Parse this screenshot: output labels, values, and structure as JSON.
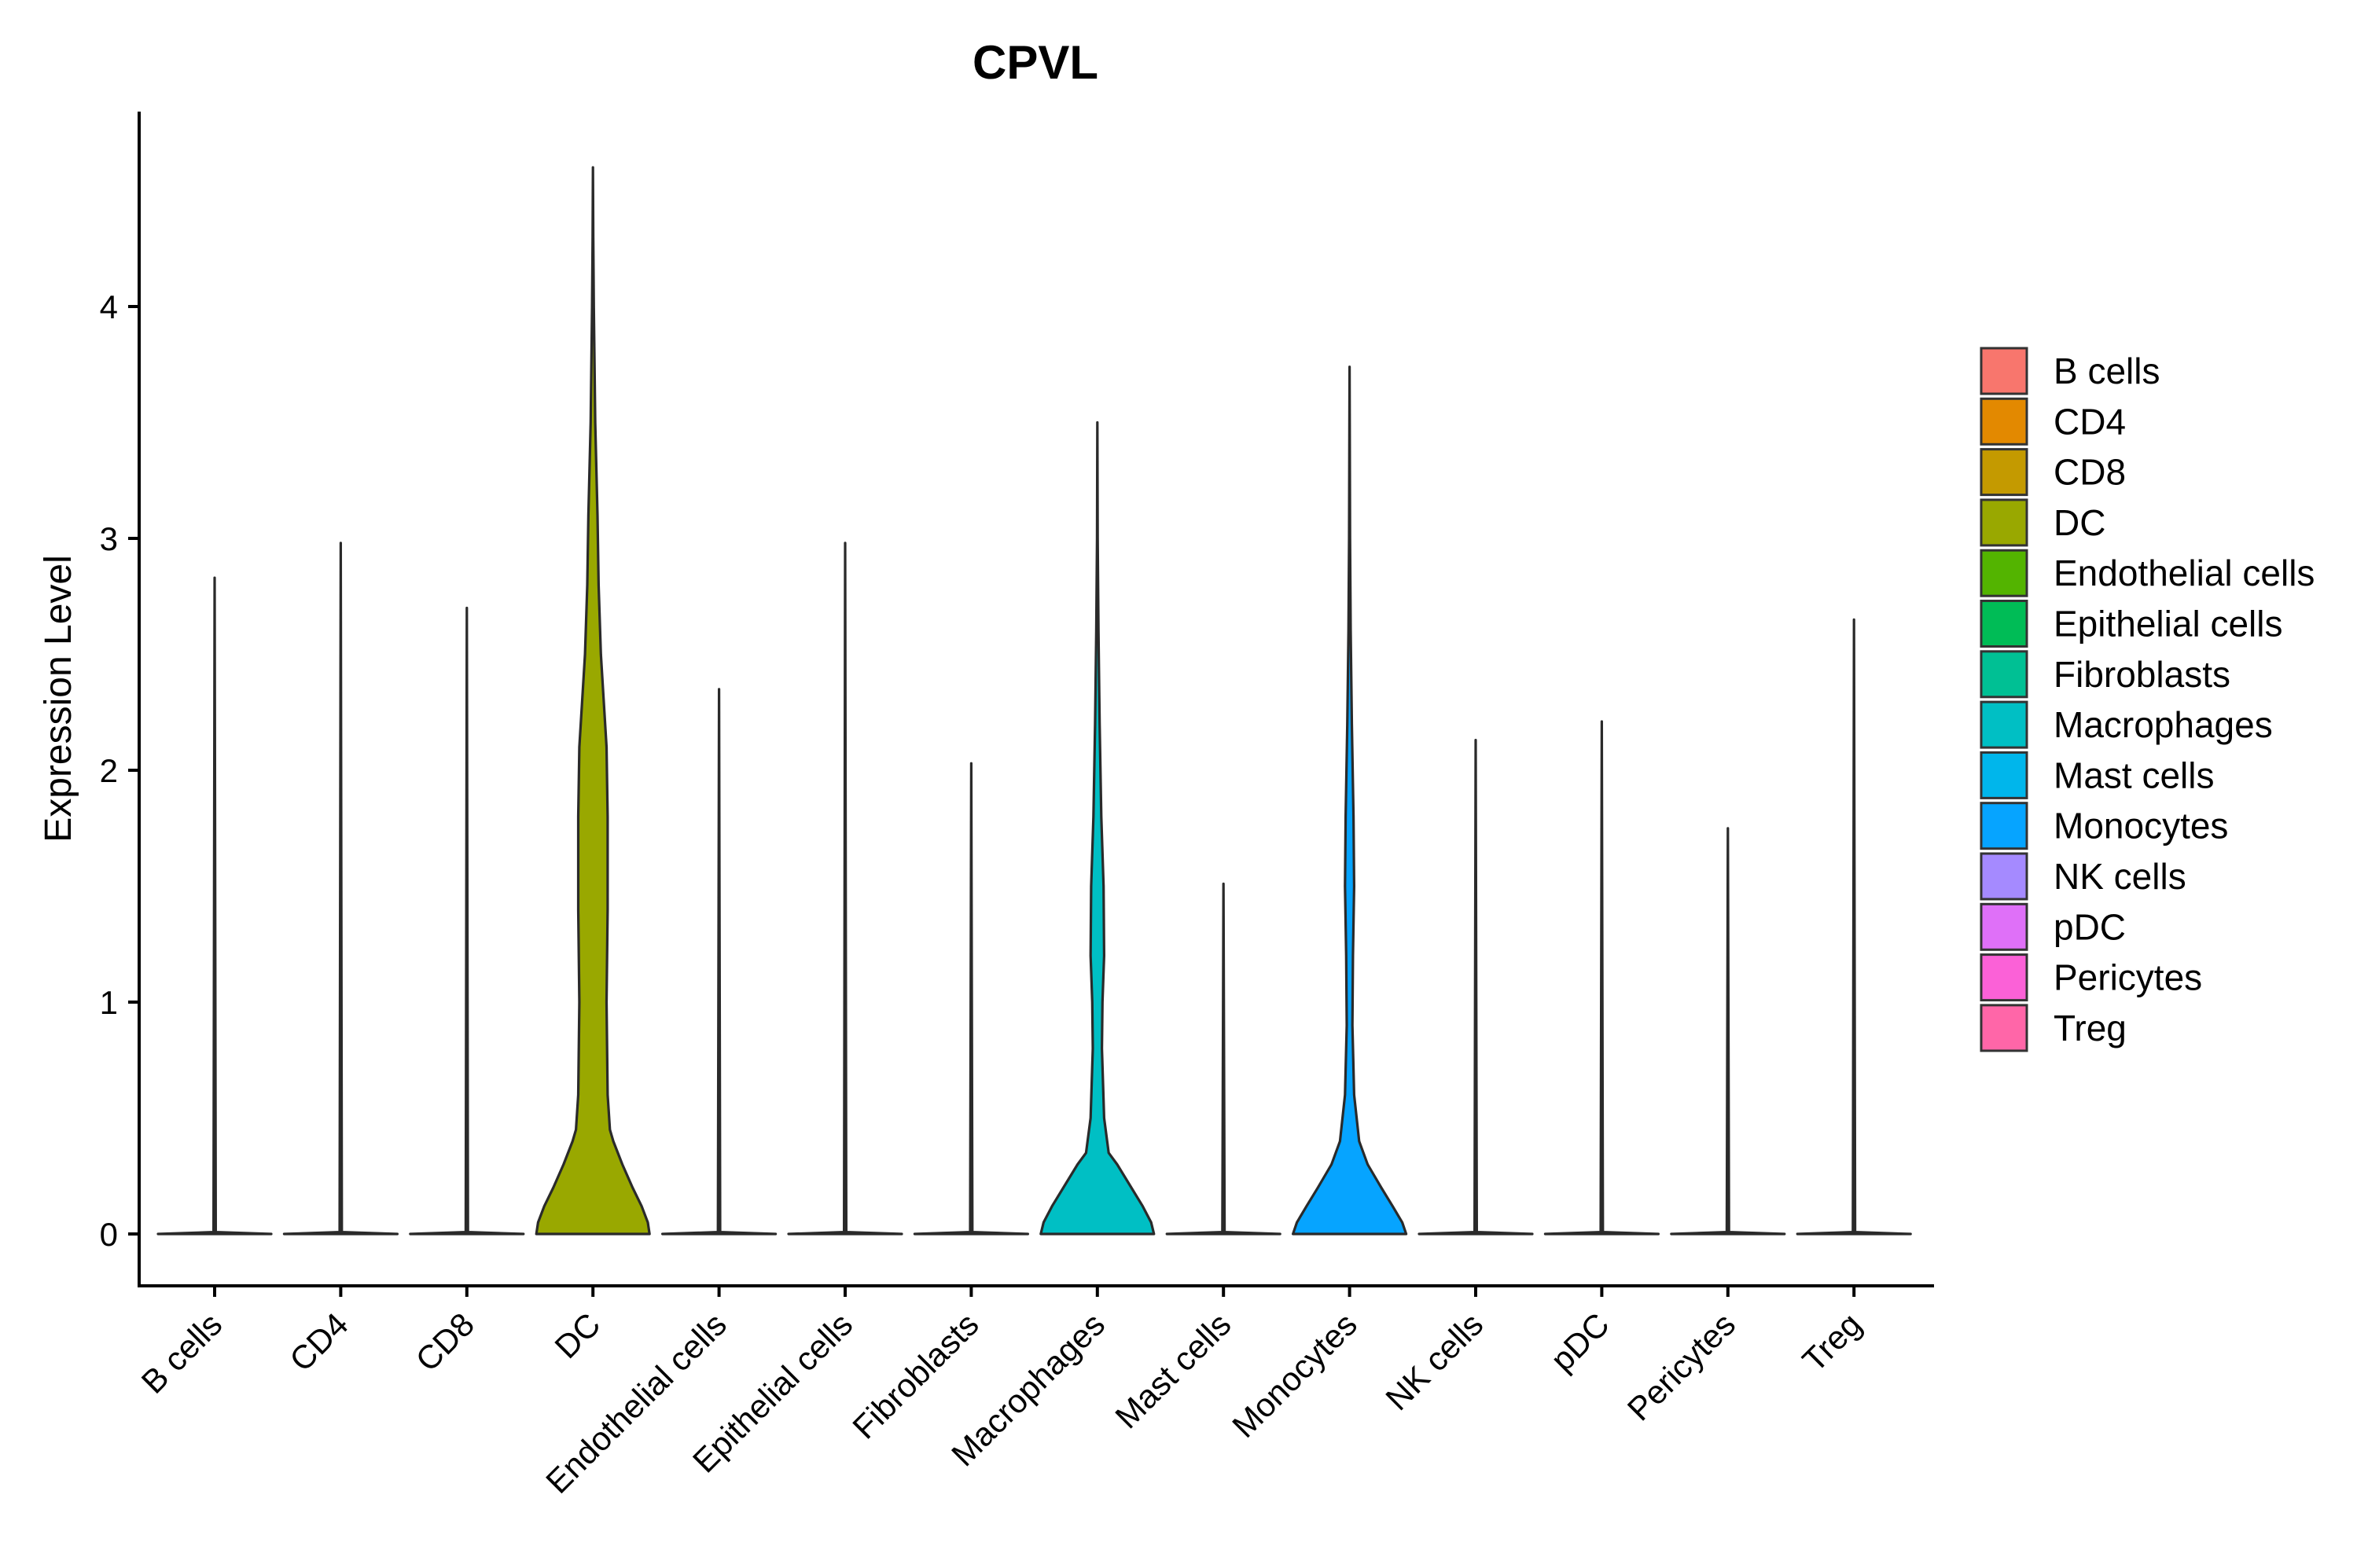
{
  "chart_data": {
    "type": "violin",
    "title": "CPVL",
    "xlabel": "",
    "ylabel": "Expression Level",
    "ylim": [
      -0.23,
      4.8
    ],
    "yticks": [
      0,
      1,
      2,
      3,
      4
    ],
    "grid": false,
    "legend_position": "right",
    "categories": [
      "B cells",
      "CD4",
      "CD8",
      "DC",
      "Endothelial cells",
      "Epithelial cells",
      "Fibroblasts",
      "Macrophages",
      "Mast cells",
      "Monocytes",
      "NK cells",
      "pDC",
      "Pericytes",
      "Treg"
    ],
    "colors": [
      "#F8766D",
      "#E38900",
      "#C49A00",
      "#99A800",
      "#53B400",
      "#00BC56",
      "#00C094",
      "#00BFC4",
      "#00B6EB",
      "#06A4FF",
      "#A58AFF",
      "#DF70F8",
      "#FB61D7",
      "#FF66A8"
    ],
    "max_values": [
      2.83,
      2.98,
      2.7,
      4.6,
      2.35,
      2.98,
      2.03,
      3.5,
      1.51,
      3.74,
      2.13,
      2.21,
      1.75,
      2.65
    ],
    "density_profiles": [
      [
        [
          0,
          1.0
        ],
        [
          0.008,
          0.02
        ],
        [
          2.83,
          0.0
        ]
      ],
      [
        [
          0,
          1.0
        ],
        [
          0.008,
          0.02
        ],
        [
          2.98,
          0.0
        ]
      ],
      [
        [
          0,
          1.0
        ],
        [
          0.008,
          0.02
        ],
        [
          2.7,
          0.0
        ]
      ],
      [
        [
          0,
          1.0
        ],
        [
          0.05,
          0.97
        ],
        [
          0.12,
          0.86
        ],
        [
          0.2,
          0.7
        ],
        [
          0.3,
          0.52
        ],
        [
          0.4,
          0.36
        ],
        [
          0.45,
          0.3
        ],
        [
          0.6,
          0.26
        ],
        [
          1.0,
          0.24
        ],
        [
          1.4,
          0.26
        ],
        [
          1.8,
          0.26
        ],
        [
          2.1,
          0.24
        ],
        [
          2.5,
          0.14
        ],
        [
          2.8,
          0.1
        ],
        [
          3.1,
          0.08
        ],
        [
          3.5,
          0.04
        ],
        [
          4.0,
          0.015
        ],
        [
          4.3,
          0.006
        ],
        [
          4.6,
          0.0
        ]
      ],
      [
        [
          0,
          1.0
        ],
        [
          0.008,
          0.02
        ],
        [
          2.35,
          0.0
        ]
      ],
      [
        [
          0,
          1.0
        ],
        [
          0.008,
          0.02
        ],
        [
          2.98,
          0.0
        ]
      ],
      [
        [
          0,
          1.0
        ],
        [
          0.008,
          0.02
        ],
        [
          2.03,
          0.0
        ]
      ],
      [
        [
          0,
          1.0
        ],
        [
          0.05,
          0.95
        ],
        [
          0.12,
          0.8
        ],
        [
          0.2,
          0.6
        ],
        [
          0.3,
          0.35
        ],
        [
          0.35,
          0.2
        ],
        [
          0.5,
          0.12
        ],
        [
          0.8,
          0.08
        ],
        [
          1.0,
          0.09
        ],
        [
          1.2,
          0.12
        ],
        [
          1.5,
          0.11
        ],
        [
          1.8,
          0.07
        ],
        [
          2.2,
          0.04
        ],
        [
          2.6,
          0.02
        ],
        [
          3.0,
          0.006
        ],
        [
          3.5,
          0.0
        ]
      ],
      [
        [
          0,
          1.0
        ],
        [
          0.008,
          0.02
        ],
        [
          1.51,
          0.0
        ]
      ],
      [
        [
          0,
          1.0
        ],
        [
          0.05,
          0.93
        ],
        [
          0.12,
          0.76
        ],
        [
          0.2,
          0.56
        ],
        [
          0.3,
          0.32
        ],
        [
          0.4,
          0.17
        ],
        [
          0.6,
          0.08
        ],
        [
          0.9,
          0.05
        ],
        [
          1.2,
          0.06
        ],
        [
          1.5,
          0.08
        ],
        [
          1.8,
          0.07
        ],
        [
          2.2,
          0.04
        ],
        [
          2.6,
          0.02
        ],
        [
          3.0,
          0.008
        ],
        [
          3.74,
          0.0
        ]
      ],
      [
        [
          0,
          1.0
        ],
        [
          0.008,
          0.02
        ],
        [
          2.13,
          0.0
        ]
      ],
      [
        [
          0,
          1.0
        ],
        [
          0.008,
          0.02
        ],
        [
          2.21,
          0.0
        ]
      ],
      [
        [
          0,
          1.0
        ],
        [
          0.008,
          0.02
        ],
        [
          1.75,
          0.0
        ]
      ],
      [
        [
          0,
          1.0
        ],
        [
          0.008,
          0.02
        ],
        [
          2.65,
          0.0
        ]
      ]
    ]
  }
}
